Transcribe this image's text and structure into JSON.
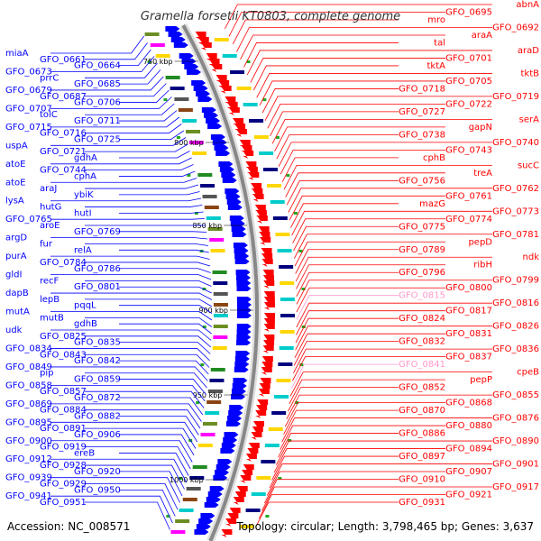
{
  "title": "Gramella forsetii KT0803, complete genome",
  "accession": "Accession: NC_008571",
  "topology": "Topology: circular; Length: 3,798,465 bp; Genes: 3,637",
  "colors": {
    "reverse": "#0000ff",
    "forward": "#ff0000",
    "rna": "#ff99cc",
    "backbone": "#888888"
  },
  "ticks": [
    "750 kbp",
    "800 kbp",
    "850 kbp",
    "900 kbp",
    "950 kbp",
    "1000 kbp"
  ],
  "left_labels": [
    "miaA",
    "GFO_0661",
    "GFO_0664",
    "GFO_0673",
    "prrC",
    "GFO_0685",
    "GFO_0679",
    "GFO_0687",
    "GFO_0706",
    "GFO_0707",
    "tolC",
    "GFO_0711",
    "GFO_0715",
    "GFO_0716",
    "GFO_0725",
    "uspA",
    "GFO_0721",
    "gdhA",
    "atoE",
    "GFO_0744",
    "cphA",
    "atoE",
    "araJ",
    "ybiK",
    "lysA",
    "hutG",
    "hutI",
    "GFO_0765",
    "aroE",
    "GFO_0769",
    "argD",
    "fur",
    "relA",
    "purA",
    "GFO_0784",
    "GFO_0786",
    "gldI",
    "recF",
    "GFO_0801",
    "dapB",
    "lepB",
    "pqqL",
    "mutA",
    "mutB",
    "gdhB",
    "udk",
    "GFO_0825",
    "GFO_0835",
    "GFO_0834",
    "GFO_0843",
    "GFO_0842",
    "GFO_0849",
    "pip",
    "GFO_0859",
    "GFO_0858",
    "GFO_0857",
    "GFO_0872",
    "GFO_0869",
    "GFO_0884",
    "GFO_0882",
    "GFO_0895",
    "GFO_0891",
    "GFO_0906",
    "GFO_0900",
    "GFO_0919",
    "ereB",
    "GFO_0912",
    "GFO_0928",
    "GFO_0920",
    "GFO_0939",
    "GFO_0929",
    "GFO_0950",
    "GFO_0941",
    "GFO_0951"
  ],
  "right_labels": [
    "abnA",
    "GFO_0695",
    "mro",
    "GFO_0692",
    "araA",
    "tal",
    "araD",
    "GFO_0701",
    "tktA",
    "tktB",
    "GFO_0705",
    "GFO_0718",
    "GFO_0719",
    "GFO_0722",
    "GFO_0727",
    "serA",
    "gapN",
    "GFO_0738",
    "GFO_0740",
    "GFO_0743",
    "cphB",
    "sucC",
    "treA",
    "GFO_0756",
    "GFO_0762",
    "GFO_0761",
    "mazG",
    "GFO_0773",
    "GFO_0774",
    "GFO_0775",
    "GFO_0781",
    "pepD",
    "GFO_0789",
    "ndk",
    "ribH",
    "GFO_0796",
    "GFO_0799",
    "GFO_0800",
    "GFO_0815",
    "GFO_0816",
    "GFO_0817",
    "GFO_0824",
    "GFO_0826",
    "GFO_0831",
    "GFO_0832",
    "GFO_0836",
    "GFO_0837",
    "GFO_0841",
    "cpeB",
    "pepP",
    "GFO_0852",
    "GFO_0855",
    "GFO_0868",
    "GFO_0870",
    "GFO_0876",
    "GFO_0880",
    "GFO_0886",
    "GFO_0890",
    "GFO_0894",
    "GFO_0897",
    "GFO_0901",
    "GFO_0907",
    "GFO_0910",
    "GFO_0917",
    "GFO_0921",
    "GFO_0931"
  ]
}
